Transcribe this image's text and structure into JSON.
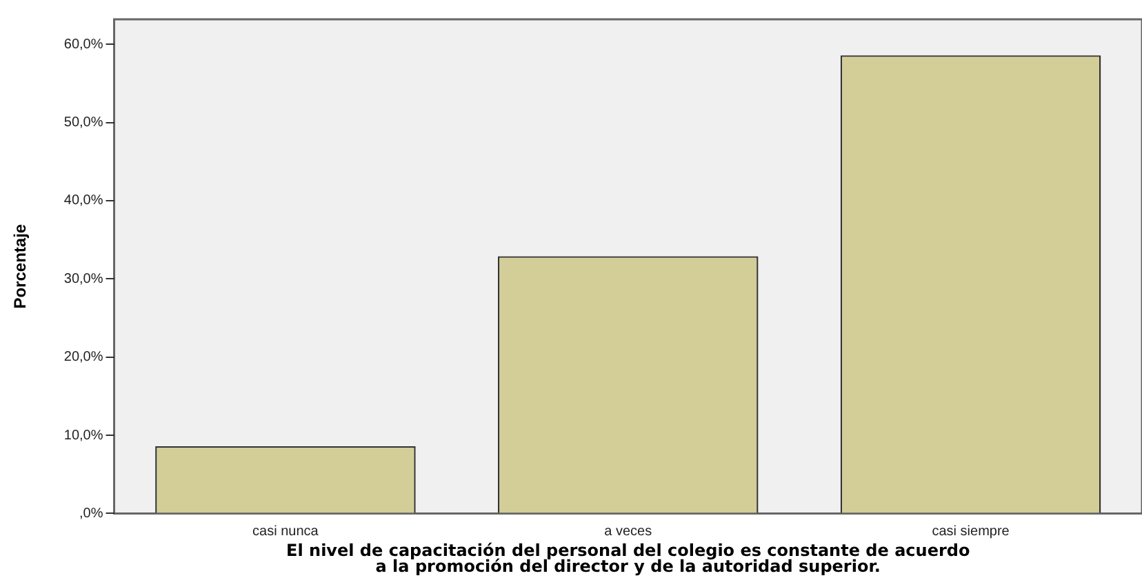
{
  "chart_data": {
    "type": "bar",
    "xlabel": "El nivel de capacitación del personal del colegio es constante de acuerdo\na la promoción del director y de la autoridad superior.",
    "ylabel": "Porcentaje",
    "categories": [
      "casi nunca",
      "a veces",
      "casi siempre"
    ],
    "values": [
      8.6,
      32.9,
      58.6
    ],
    "color": "#d3cd97",
    "ylim": [
      0,
      63.2
    ],
    "yticks": [
      {
        "value": 0,
        "label": ",0%"
      },
      {
        "value": 10,
        "label": "10,0%"
      },
      {
        "value": 20,
        "label": "20,0%"
      },
      {
        "value": 30,
        "label": "30,0%"
      },
      {
        "value": 40,
        "label": "40,0%"
      },
      {
        "value": 50,
        "label": "50,0%"
      },
      {
        "value": 60,
        "label": "60,0%"
      }
    ],
    "grid": false,
    "legend": false
  }
}
